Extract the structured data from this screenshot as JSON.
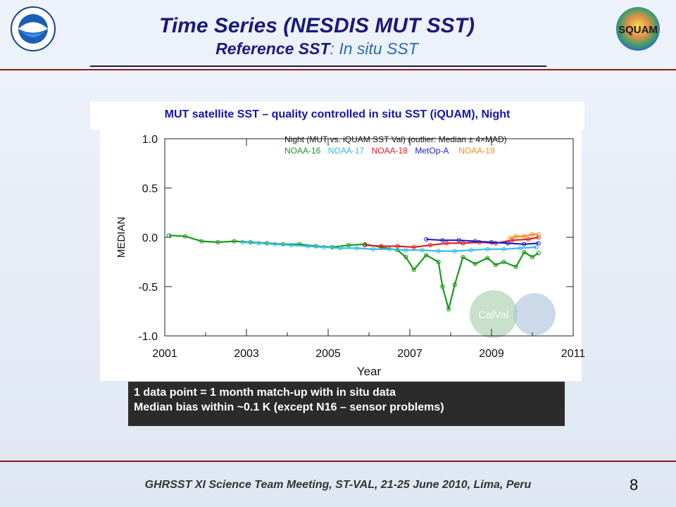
{
  "header": {
    "title": "Time Series (NESDIS MUT SST)",
    "subtitle_lead": "Reference SST",
    "subtitle_rest": ": In situ SST"
  },
  "logos": {
    "left": "noaa-logo",
    "right": "SQUAM",
    "watermark": "CalVal"
  },
  "chart_box_title": "MUT satellite SST – quality controlled in situ SST (iQUAM), Night",
  "notes": [
    "1 data point = 1 month match-up with in situ data",
    "Median bias within ~0.1 K (except N16 – sensor problems)"
  ],
  "footer": "GHRSST XI Science Team Meeting, ST-VAL, 21-25 June 2010, Lima, Peru",
  "page_number": "8",
  "chart_data": {
    "type": "line",
    "legend_title": "Night (MUT vs. iQUAM SST Val) (outlier: Median ± 4×MAD)",
    "xlabel": "Year",
    "ylabel": "MEDIAN",
    "xlim": [
      2001,
      2011
    ],
    "ylim": [
      -1.0,
      1.0
    ],
    "xticks": [
      2001,
      2003,
      2005,
      2007,
      2009,
      2011
    ],
    "yticks": [
      1.0,
      0.5,
      0.0,
      -0.5,
      -1.0
    ],
    "ytick_labels": [
      "1.0",
      "0.5",
      "0.0",
      "-0.5",
      "-1.0"
    ],
    "legend_position": "top-right",
    "series": [
      {
        "name": "NOAA-16",
        "color": "#1a9a1a",
        "x": [
          2001.1,
          2001.5,
          2001.9,
          2002.3,
          2002.7,
          2003.1,
          2003.5,
          2003.9,
          2004.3,
          2004.7,
          2005.1,
          2005.5,
          2005.9,
          2006.3,
          2006.7,
          2006.9,
          2007.1,
          2007.4,
          2007.7,
          2007.8,
          2007.95,
          2008.1,
          2008.3,
          2008.6,
          2008.9,
          2009.1,
          2009.3,
          2009.6,
          2009.8,
          2010.0,
          2010.15
        ],
        "y": [
          0.02,
          0.01,
          -0.04,
          -0.05,
          -0.04,
          -0.05,
          -0.06,
          -0.07,
          -0.07,
          -0.09,
          -0.1,
          -0.08,
          -0.07,
          -0.1,
          -0.13,
          -0.2,
          -0.33,
          -0.18,
          -0.25,
          -0.5,
          -0.73,
          -0.48,
          -0.2,
          -0.27,
          -0.21,
          -0.28,
          -0.25,
          -0.3,
          -0.15,
          -0.2,
          -0.16
        ]
      },
      {
        "name": "NOAA-17",
        "color": "#33bbee",
        "x": [
          2002.9,
          2003.3,
          2003.7,
          2004.1,
          2004.5,
          2004.9,
          2005.3,
          2005.7,
          2006.1,
          2006.5,
          2006.9,
          2007.3,
          2007.7,
          2008.1,
          2008.5,
          2008.9,
          2009.3,
          2009.7,
          2010.1
        ],
        "y": [
          -0.05,
          -0.06,
          -0.07,
          -0.08,
          -0.09,
          -0.1,
          -0.11,
          -0.11,
          -0.12,
          -0.12,
          -0.13,
          -0.13,
          -0.14,
          -0.14,
          -0.13,
          -0.12,
          -0.12,
          -0.11,
          -0.1
        ]
      },
      {
        "name": "NOAA-18",
        "color": "#e02020",
        "x": [
          2005.9,
          2006.3,
          2006.7,
          2007.1,
          2007.5,
          2007.9,
          2008.3,
          2008.7,
          2009.1,
          2009.5,
          2009.9,
          2010.15
        ],
        "y": [
          -0.08,
          -0.09,
          -0.09,
          -0.1,
          -0.08,
          -0.06,
          -0.06,
          -0.05,
          -0.06,
          -0.03,
          -0.02,
          0.0
        ]
      },
      {
        "name": "MetOp-A",
        "color": "#2020cc",
        "x": [
          2007.4,
          2007.8,
          2008.2,
          2008.6,
          2009.0,
          2009.4,
          2009.8,
          2010.15
        ],
        "y": [
          -0.02,
          -0.03,
          -0.03,
          -0.04,
          -0.05,
          -0.06,
          -0.07,
          -0.06
        ]
      },
      {
        "name": "NOAA-19",
        "color": "#ff8c1a",
        "x": [
          2009.45,
          2009.6,
          2009.8,
          2010.0,
          2010.15
        ],
        "y": [
          -0.01,
          0.01,
          0.01,
          0.03,
          0.03
        ]
      }
    ]
  }
}
